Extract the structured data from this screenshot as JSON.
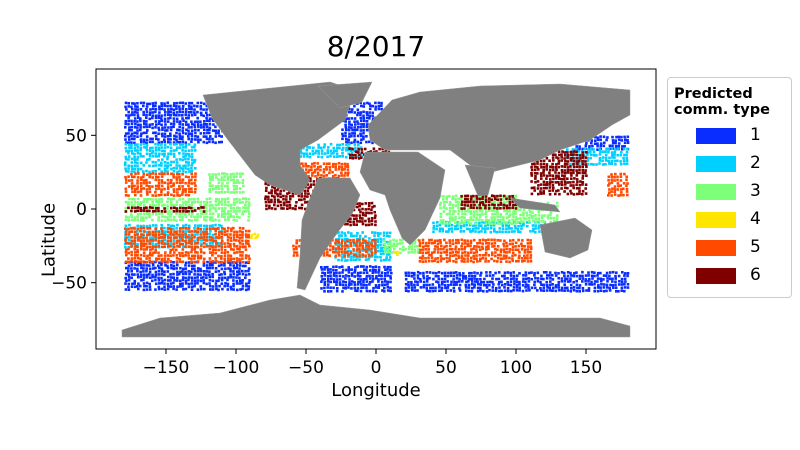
{
  "title": "8/2017",
  "xlabel": "Longitude",
  "ylabel": "Latitude",
  "xlim": [
    -200,
    200
  ],
  "ylim": [
    -95,
    95
  ],
  "xticks": [
    -150,
    -100,
    -50,
    0,
    50,
    100,
    150
  ],
  "xtick_labels": [
    "−150",
    "−100",
    "−50",
    "0",
    "50",
    "100",
    "150"
  ],
  "yticks": [
    -50,
    0,
    50
  ],
  "ytick_labels": [
    "−50",
    "0",
    "50"
  ],
  "legend": {
    "title_line1": "Predicted",
    "title_line2": "comm. type",
    "placement": "outside-right",
    "items": [
      {
        "label": "1",
        "color": "#0a2dff"
      },
      {
        "label": "2",
        "color": "#00d0ff"
      },
      {
        "label": "3",
        "color": "#7cff79"
      },
      {
        "label": "4",
        "color": "#ffe600"
      },
      {
        "label": "5",
        "color": "#ff4a00"
      },
      {
        "label": "6",
        "color": "#800000"
      }
    ]
  },
  "land_color": "#808080",
  "ocean_color": "#ffffff",
  "chart_data": {
    "type": "scatter",
    "title": "8/2017",
    "xlabel": "Longitude",
    "ylabel": "Latitude",
    "xlim": [
      -200,
      200
    ],
    "ylim": [
      -95,
      95
    ],
    "grid": false,
    "legend_placement": "outside-right",
    "series": [
      {
        "name": "1",
        "color": "#0a2dff",
        "regions": [
          {
            "lon": [
              -180,
              -110
            ],
            "lat": [
              45,
              73
            ]
          },
          {
            "lon": [
              -180,
              -90
            ],
            "lat": [
              -55,
              -35
            ]
          },
          {
            "lon": [
              -40,
              10
            ],
            "lat": [
              -55,
              -38
            ]
          },
          {
            "lon": [
              20,
              180
            ],
            "lat": [
              -55,
              -42
            ]
          },
          {
            "lon": [
              -25,
              5
            ],
            "lat": [
              45,
              73
            ]
          },
          {
            "lon": [
              140,
              180
            ],
            "lat": [
              40,
              50
            ]
          }
        ]
      },
      {
        "name": "2",
        "color": "#00d0ff",
        "regions": [
          {
            "lon": [
              -180,
              -130
            ],
            "lat": [
              25,
              45
            ]
          },
          {
            "lon": [
              -180,
              -110
            ],
            "lat": [
              -25,
              -10
            ]
          },
          {
            "lon": [
              -70,
              -10
            ],
            "lat": [
              35,
              45
            ]
          },
          {
            "lon": [
              -30,
              10
            ],
            "lat": [
              -35,
              -15
            ]
          },
          {
            "lon": [
              40,
              120
            ],
            "lat": [
              -15,
              -8
            ]
          },
          {
            "lon": [
              135,
              180
            ],
            "lat": [
              30,
              42
            ]
          }
        ]
      },
      {
        "name": "3",
        "color": "#7cff79",
        "regions": [
          {
            "lon": [
              -180,
              -90
            ],
            "lat": [
              -8,
              8
            ]
          },
          {
            "lon": [
              -120,
              -95
            ],
            "lat": [
              12,
              25
            ]
          },
          {
            "lon": [
              45,
              100
            ],
            "lat": [
              -10,
              10
            ]
          },
          {
            "lon": [
              5,
              30
            ],
            "lat": [
              -30,
              -20
            ]
          },
          {
            "lon": [
              100,
              130
            ],
            "lat": [
              -8,
              5
            ]
          }
        ]
      },
      {
        "name": "4",
        "color": "#ffe600",
        "regions": [
          {
            "lon": [
              12,
              16
            ],
            "lat": [
              -32,
              -26
            ]
          },
          {
            "lon": [
              -90,
              -85
            ],
            "lat": [
              -20,
              -16
            ]
          }
        ]
      },
      {
        "name": "5",
        "color": "#ff4a00",
        "regions": [
          {
            "lon": [
              -180,
              -90
            ],
            "lat": [
              -35,
              -12
            ]
          },
          {
            "lon": [
              -180,
              -130
            ],
            "lat": [
              10,
              25
            ]
          },
          {
            "lon": [
              -60,
              0
            ],
            "lat": [
              -32,
              -20
            ]
          },
          {
            "lon": [
              30,
              110
            ],
            "lat": [
              -35,
              -20
            ]
          },
          {
            "lon": [
              -60,
              -20
            ],
            "lat": [
              22,
              32
            ]
          },
          {
            "lon": [
              165,
              180
            ],
            "lat": [
              10,
              25
            ]
          }
        ]
      },
      {
        "name": "6",
        "color": "#800000",
        "regions": [
          {
            "lon": [
              -80,
              -20
            ],
            "lat": [
              0,
              22
            ]
          },
          {
            "lon": [
              -30,
              0
            ],
            "lat": [
              -10,
              5
            ]
          },
          {
            "lon": [
              60,
              100
            ],
            "lat": [
              0,
              10
            ]
          },
          {
            "lon": [
              110,
              150
            ],
            "lat": [
              10,
              40
            ]
          },
          {
            "lon": [
              -180,
              -120
            ],
            "lat": [
              -2,
              2
            ]
          },
          {
            "lon": [
              -20,
              10
            ],
            "lat": [
              35,
              42
            ]
          }
        ]
      }
    ]
  }
}
